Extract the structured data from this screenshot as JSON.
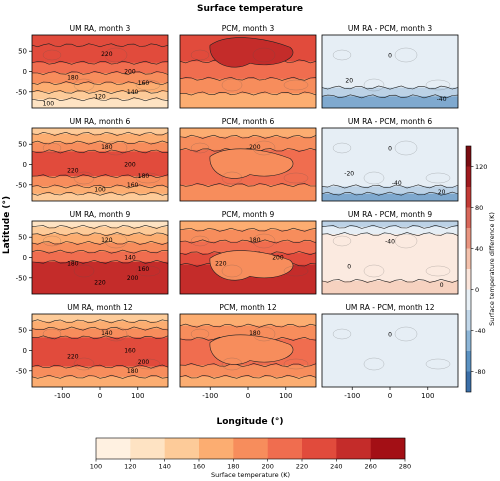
{
  "chart_data": {
    "type": "contour",
    "title": "Surface temperature",
    "xlabel": "Longitude (°)",
    "ylabel": "Latitude (°)",
    "x_ticks": [
      -100,
      0,
      100
    ],
    "y_ticks": [
      50,
      0,
      -50
    ],
    "xlim": [
      -180,
      180
    ],
    "ylim": [
      -90,
      90
    ],
    "rows": [
      {
        "month": 3,
        "panels": [
          {
            "title": "UM RA, month 3",
            "kind": "abs",
            "contour_labels": [
              "220",
              "200",
              "180",
              "160",
              "140",
              "120",
              "100"
            ]
          },
          {
            "title": "PCM, month 3",
            "kind": "abs",
            "contour_labels": []
          },
          {
            "title": "UM RA - PCM, month 3",
            "kind": "diff",
            "contour_labels": [
              "0",
              "20",
              "-40"
            ]
          }
        ]
      },
      {
        "month": 6,
        "panels": [
          {
            "title": "UM RA, month 6",
            "kind": "abs",
            "contour_labels": [
              "180",
              "200",
              "220",
              "180",
              "160",
              "100"
            ]
          },
          {
            "title": "PCM, month 6",
            "kind": "abs",
            "contour_labels": [
              "200"
            ]
          },
          {
            "title": "UM RA - PCM, month 6",
            "kind": "diff",
            "contour_labels": [
              "0",
              "-20",
              "20",
              "-40"
            ]
          }
        ]
      },
      {
        "month": 9,
        "panels": [
          {
            "title": "UM RA, month 9",
            "kind": "abs",
            "contour_labels": [
              "120",
              "140",
              "180",
              "160",
              "200",
              "220"
            ]
          },
          {
            "title": "PCM, month 9",
            "kind": "abs",
            "contour_labels": [
              "180",
              "200",
              "220"
            ]
          },
          {
            "title": "UM RA - PCM, month 9",
            "kind": "diff",
            "contour_labels": [
              "-40",
              "0",
              "0"
            ]
          }
        ]
      },
      {
        "month": 12,
        "panels": [
          {
            "title": "UM RA, month 12",
            "kind": "abs",
            "contour_labels": [
              "140",
              "160",
              "220",
              "200",
              "180"
            ]
          },
          {
            "title": "PCM, month 12",
            "kind": "abs",
            "contour_labels": [
              "180"
            ]
          },
          {
            "title": "UM RA - PCM, month 12",
            "kind": "diff",
            "contour_labels": [
              "0"
            ]
          }
        ]
      }
    ],
    "colorbar_abs": {
      "label": "Surface temperature (K)",
      "ticks": [
        "100",
        "120",
        "140",
        "160",
        "180",
        "200",
        "220",
        "240",
        "260",
        "280"
      ],
      "colors": [
        "#fff1e1",
        "#fee3c3",
        "#fdcb99",
        "#fcad71",
        "#f78d5c",
        "#f06d4f",
        "#e14b3c",
        "#c42c2a",
        "#a30f15"
      ]
    },
    "colorbar_diff": {
      "label": "Surface temperature difference (K)",
      "ticks": [
        "120",
        "80",
        "40",
        "0",
        "-40",
        "-80"
      ],
      "values": [
        120,
        80,
        40,
        0,
        -40,
        -80
      ],
      "range": [
        -100,
        140
      ]
    }
  }
}
